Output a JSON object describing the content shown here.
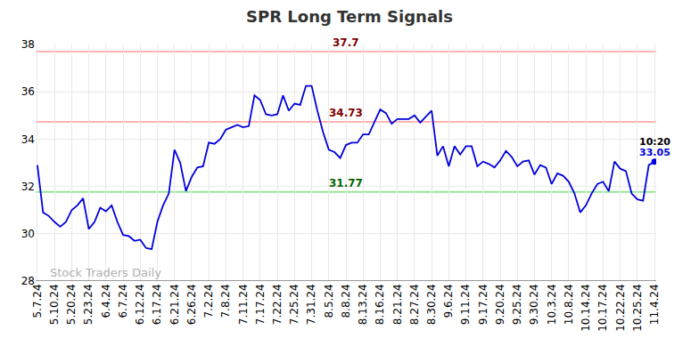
{
  "chart_data": {
    "type": "line",
    "title": "SPR Long Term Signals",
    "watermark": "Stock Traders Daily",
    "color": "#0000dd",
    "grid": true,
    "categories": [
      "5.7.24",
      null,
      null,
      "5.10.24",
      null,
      null,
      "5.20.24",
      null,
      null,
      "5.23.24",
      null,
      null,
      "6.4.24",
      null,
      null,
      "6.7.24",
      null,
      null,
      "6.12.24",
      null,
      null,
      "6.17.24",
      null,
      null,
      "6.21.24",
      null,
      null,
      "6.26.24",
      null,
      null,
      "7.2.24",
      null,
      null,
      "7.8.24",
      null,
      null,
      "7.11.24",
      null,
      null,
      "7.17.24",
      null,
      null,
      "7.22.24",
      null,
      null,
      "7.25.24",
      null,
      null,
      "7.31.24",
      null,
      null,
      "8.5.24",
      null,
      null,
      "8.8.24",
      null,
      null,
      "8.13.24",
      null,
      null,
      "8.16.24",
      null,
      null,
      "8.21.24",
      null,
      null,
      "8.27.24",
      null,
      null,
      "8.30.24",
      null,
      null,
      "9.6.24",
      null,
      null,
      "9.11.24",
      null,
      null,
      "9.17.24",
      null,
      null,
      "9.20.24",
      null,
      null,
      "9.25.24",
      null,
      null,
      "9.30.24",
      null,
      null,
      "10.3.24",
      null,
      null,
      "10.8.24",
      null,
      null,
      "10.14.24",
      null,
      null,
      "10.17.24",
      null,
      null,
      "10.22.24",
      null,
      null,
      "10.25.24",
      null,
      null,
      "11.4.24"
    ],
    "values": [
      32.9,
      30.9,
      30.75,
      30.5,
      30.3,
      30.5,
      31.0,
      31.2,
      31.5,
      30.2,
      30.5,
      31.1,
      30.95,
      31.2,
      30.5,
      29.95,
      29.9,
      29.7,
      29.75,
      29.4,
      29.35,
      30.5,
      31.2,
      31.7,
      33.55,
      33.0,
      31.8,
      32.4,
      32.8,
      32.85,
      33.85,
      33.8,
      34.0,
      34.4,
      34.5,
      34.6,
      34.5,
      34.55,
      35.85,
      35.65,
      35.05,
      35.0,
      35.05,
      35.85,
      35.2,
      35.5,
      35.45,
      36.25,
      36.25,
      35.2,
      34.3,
      33.55,
      33.45,
      33.2,
      33.75,
      33.85,
      33.85,
      34.2,
      34.2,
      34.7,
      35.25,
      35.1,
      34.65,
      34.85,
      34.85,
      34.85,
      35.0,
      34.7,
      34.95,
      35.2,
      33.3,
      33.7,
      32.85,
      33.7,
      33.35,
      33.7,
      33.7,
      32.85,
      33.05,
      32.95,
      32.8,
      33.1,
      33.5,
      33.25,
      32.85,
      33.05,
      33.1,
      32.5,
      32.9,
      32.8,
      32.1,
      32.55,
      32.45,
      32.2,
      31.7,
      30.9,
      31.2,
      31.7,
      32.1,
      32.2,
      31.8,
      33.05,
      32.75,
      32.65,
      31.7,
      31.45,
      31.4,
      32.9,
      33.05
    ],
    "ylim": [
      28,
      38
    ],
    "yticks": [
      28,
      30,
      32,
      34,
      36,
      38
    ],
    "levels": [
      {
        "value": 37.7,
        "label": "37.7",
        "color": "#ffb3b3",
        "label_color": "#800000"
      },
      {
        "value": 34.73,
        "label": "34.73",
        "color": "#ffb3b3",
        "label_color": "#800000"
      },
      {
        "value": 31.77,
        "label": "31.77",
        "color": "#99e699",
        "label_color": "#006400"
      }
    ],
    "annotations": [
      {
        "text": "10:20"
      },
      {
        "text": "33.05"
      }
    ]
  }
}
